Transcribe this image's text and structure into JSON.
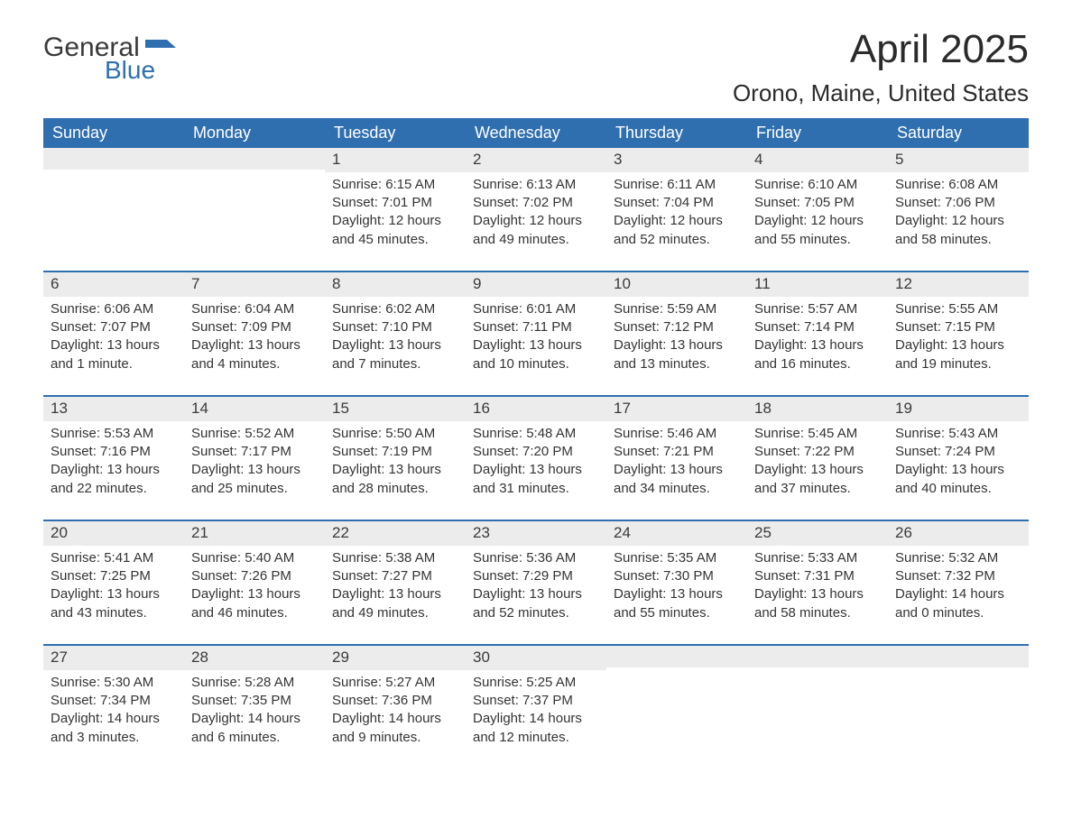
{
  "logo": {
    "text_general": "General",
    "text_blue": "Blue",
    "shape_color": "#2f6fb0"
  },
  "title": "April 2025",
  "location": "Orono, Maine, United States",
  "colors": {
    "header_bg": "#2f6fb0",
    "header_text": "#ffffff",
    "daynum_bg": "#ececec",
    "text": "#343434",
    "rule": "#2f6fb0",
    "page_bg": "#ffffff"
  },
  "day_names": [
    "Sunday",
    "Monday",
    "Tuesday",
    "Wednesday",
    "Thursday",
    "Friday",
    "Saturday"
  ],
  "weeks": [
    [
      null,
      null,
      {
        "n": "1",
        "sunrise": "Sunrise: 6:15 AM",
        "sunset": "Sunset: 7:01 PM",
        "daylight": "Daylight: 12 hours and 45 minutes."
      },
      {
        "n": "2",
        "sunrise": "Sunrise: 6:13 AM",
        "sunset": "Sunset: 7:02 PM",
        "daylight": "Daylight: 12 hours and 49 minutes."
      },
      {
        "n": "3",
        "sunrise": "Sunrise: 6:11 AM",
        "sunset": "Sunset: 7:04 PM",
        "daylight": "Daylight: 12 hours and 52 minutes."
      },
      {
        "n": "4",
        "sunrise": "Sunrise: 6:10 AM",
        "sunset": "Sunset: 7:05 PM",
        "daylight": "Daylight: 12 hours and 55 minutes."
      },
      {
        "n": "5",
        "sunrise": "Sunrise: 6:08 AM",
        "sunset": "Sunset: 7:06 PM",
        "daylight": "Daylight: 12 hours and 58 minutes."
      }
    ],
    [
      {
        "n": "6",
        "sunrise": "Sunrise: 6:06 AM",
        "sunset": "Sunset: 7:07 PM",
        "daylight": "Daylight: 13 hours and 1 minute."
      },
      {
        "n": "7",
        "sunrise": "Sunrise: 6:04 AM",
        "sunset": "Sunset: 7:09 PM",
        "daylight": "Daylight: 13 hours and 4 minutes."
      },
      {
        "n": "8",
        "sunrise": "Sunrise: 6:02 AM",
        "sunset": "Sunset: 7:10 PM",
        "daylight": "Daylight: 13 hours and 7 minutes."
      },
      {
        "n": "9",
        "sunrise": "Sunrise: 6:01 AM",
        "sunset": "Sunset: 7:11 PM",
        "daylight": "Daylight: 13 hours and 10 minutes."
      },
      {
        "n": "10",
        "sunrise": "Sunrise: 5:59 AM",
        "sunset": "Sunset: 7:12 PM",
        "daylight": "Daylight: 13 hours and 13 minutes."
      },
      {
        "n": "11",
        "sunrise": "Sunrise: 5:57 AM",
        "sunset": "Sunset: 7:14 PM",
        "daylight": "Daylight: 13 hours and 16 minutes."
      },
      {
        "n": "12",
        "sunrise": "Sunrise: 5:55 AM",
        "sunset": "Sunset: 7:15 PM",
        "daylight": "Daylight: 13 hours and 19 minutes."
      }
    ],
    [
      {
        "n": "13",
        "sunrise": "Sunrise: 5:53 AM",
        "sunset": "Sunset: 7:16 PM",
        "daylight": "Daylight: 13 hours and 22 minutes."
      },
      {
        "n": "14",
        "sunrise": "Sunrise: 5:52 AM",
        "sunset": "Sunset: 7:17 PM",
        "daylight": "Daylight: 13 hours and 25 minutes."
      },
      {
        "n": "15",
        "sunrise": "Sunrise: 5:50 AM",
        "sunset": "Sunset: 7:19 PM",
        "daylight": "Daylight: 13 hours and 28 minutes."
      },
      {
        "n": "16",
        "sunrise": "Sunrise: 5:48 AM",
        "sunset": "Sunset: 7:20 PM",
        "daylight": "Daylight: 13 hours and 31 minutes."
      },
      {
        "n": "17",
        "sunrise": "Sunrise: 5:46 AM",
        "sunset": "Sunset: 7:21 PM",
        "daylight": "Daylight: 13 hours and 34 minutes."
      },
      {
        "n": "18",
        "sunrise": "Sunrise: 5:45 AM",
        "sunset": "Sunset: 7:22 PM",
        "daylight": "Daylight: 13 hours and 37 minutes."
      },
      {
        "n": "19",
        "sunrise": "Sunrise: 5:43 AM",
        "sunset": "Sunset: 7:24 PM",
        "daylight": "Daylight: 13 hours and 40 minutes."
      }
    ],
    [
      {
        "n": "20",
        "sunrise": "Sunrise: 5:41 AM",
        "sunset": "Sunset: 7:25 PM",
        "daylight": "Daylight: 13 hours and 43 minutes."
      },
      {
        "n": "21",
        "sunrise": "Sunrise: 5:40 AM",
        "sunset": "Sunset: 7:26 PM",
        "daylight": "Daylight: 13 hours and 46 minutes."
      },
      {
        "n": "22",
        "sunrise": "Sunrise: 5:38 AM",
        "sunset": "Sunset: 7:27 PM",
        "daylight": "Daylight: 13 hours and 49 minutes."
      },
      {
        "n": "23",
        "sunrise": "Sunrise: 5:36 AM",
        "sunset": "Sunset: 7:29 PM",
        "daylight": "Daylight: 13 hours and 52 minutes."
      },
      {
        "n": "24",
        "sunrise": "Sunrise: 5:35 AM",
        "sunset": "Sunset: 7:30 PM",
        "daylight": "Daylight: 13 hours and 55 minutes."
      },
      {
        "n": "25",
        "sunrise": "Sunrise: 5:33 AM",
        "sunset": "Sunset: 7:31 PM",
        "daylight": "Daylight: 13 hours and 58 minutes."
      },
      {
        "n": "26",
        "sunrise": "Sunrise: 5:32 AM",
        "sunset": "Sunset: 7:32 PM",
        "daylight": "Daylight: 14 hours and 0 minutes."
      }
    ],
    [
      {
        "n": "27",
        "sunrise": "Sunrise: 5:30 AM",
        "sunset": "Sunset: 7:34 PM",
        "daylight": "Daylight: 14 hours and 3 minutes."
      },
      {
        "n": "28",
        "sunrise": "Sunrise: 5:28 AM",
        "sunset": "Sunset: 7:35 PM",
        "daylight": "Daylight: 14 hours and 6 minutes."
      },
      {
        "n": "29",
        "sunrise": "Sunrise: 5:27 AM",
        "sunset": "Sunset: 7:36 PM",
        "daylight": "Daylight: 14 hours and 9 minutes."
      },
      {
        "n": "30",
        "sunrise": "Sunrise: 5:25 AM",
        "sunset": "Sunset: 7:37 PM",
        "daylight": "Daylight: 14 hours and 12 minutes."
      },
      null,
      null,
      null
    ]
  ]
}
